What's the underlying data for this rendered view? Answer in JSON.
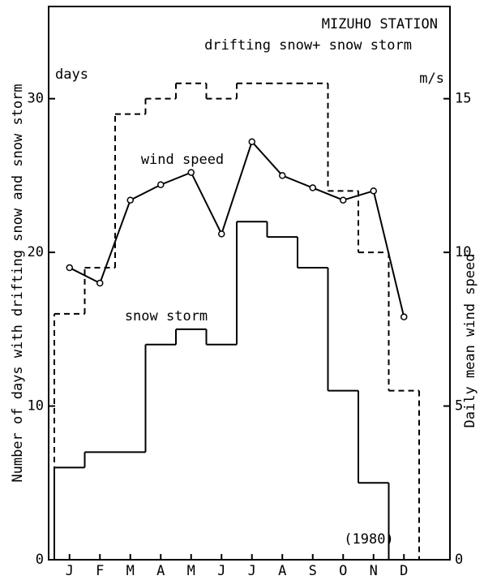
{
  "chart_data": {
    "type": "step",
    "title": "MIZUHO STATION",
    "ylabel": "Number of days with drifting snow and snow storm",
    "y2label": "Daily mean wind speed",
    "yunit": "days",
    "y2unit": "m/s",
    "annotation": "(1980)",
    "categories": [
      "J",
      "F",
      "M",
      "A",
      "M",
      "J",
      "J",
      "A",
      "S",
      "O",
      "N",
      "D"
    ],
    "series": [
      {
        "name": "drifting snow+ snow storm",
        "color": "#000000",
        "dash": true,
        "values": [
          16,
          19,
          29,
          30,
          31,
          30,
          31,
          31,
          31,
          24,
          20,
          11
        ]
      },
      {
        "name": "snow storm",
        "color": "#000000",
        "dash": false,
        "values": [
          6,
          7,
          7,
          14,
          15,
          14,
          22,
          21,
          19,
          11,
          5,
          0
        ]
      },
      {
        "name": "wind speed",
        "color": "#000000",
        "axis": "y2",
        "values": [
          9.5,
          9.0,
          11.7,
          12.2,
          12.6,
          10.6,
          13.6,
          12.5,
          12.1,
          11.7,
          12.0,
          7.9
        ]
      }
    ],
    "ylim": [
      0,
      36
    ],
    "yticks": [
      0,
      10,
      20,
      30
    ],
    "y2lim": [
      0,
      18
    ],
    "y2ticks": [
      0,
      5,
      10,
      15
    ]
  }
}
